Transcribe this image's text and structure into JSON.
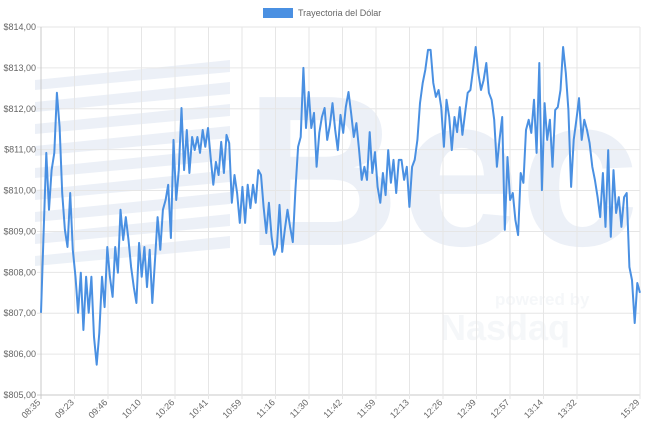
{
  "chart_data": {
    "type": "line",
    "title": "",
    "xlabel": "",
    "ylabel": "",
    "ylim": [
      805,
      814
    ],
    "grid": true,
    "legend": {
      "position": "top",
      "entries": [
        "Trayectoria del Dólar"
      ]
    },
    "y_ticks": [
      "$814,00",
      "$813,00",
      "$812,00",
      "$811,00",
      "$810,00",
      "$809,00",
      "$808,00",
      "$807,00",
      "$806,00",
      "$805,00"
    ],
    "x_ticks": [
      "08:35",
      "09:23",
      "09:46",
      "10:10",
      "10:26",
      "10:41",
      "10:59",
      "11:16",
      "11:30",
      "11:42",
      "11:59",
      "12:13",
      "12:26",
      "12:39",
      "12:57",
      "13:14",
      "13:32",
      "15:29"
    ],
    "series": [
      {
        "name": "Trayectoria del Dólar",
        "color": "#4a90e2",
        "values": [
          807.01,
          809.04,
          810.92,
          809.53,
          810.5,
          810.92,
          812.39,
          811.56,
          809.94,
          809.04,
          808.62,
          809.94,
          808.55,
          807.89,
          807.01,
          807.99,
          806.59,
          807.89,
          807.01,
          807.89,
          806.42,
          805.74,
          806.52,
          807.89,
          807.15,
          808.62,
          807.89,
          807.4,
          808.62,
          807.99,
          809.53,
          808.79,
          809.35,
          808.79,
          808.13,
          807.64,
          807.25,
          808.72,
          807.89,
          808.62,
          807.64,
          808.55,
          807.25,
          808.3,
          809.35,
          808.55,
          809.53,
          809.77,
          810.14,
          808.84,
          811.24,
          809.77,
          810.5,
          812.02,
          810.5,
          811.48,
          810.43,
          811.31,
          810.99,
          811.31,
          810.92,
          811.48,
          811.07,
          811.53,
          810.82,
          810.14,
          810.7,
          810.38,
          811.19,
          810.43,
          811.36,
          811.16,
          809.7,
          810.38,
          809.94,
          809.21,
          810.09,
          809.21,
          810.14,
          809.57,
          810.14,
          809.7,
          810.5,
          810.38,
          809.6,
          808.96,
          809.7,
          808.87,
          808.43,
          808.62,
          809.65,
          808.5,
          809.04,
          809.53,
          809.11,
          808.74,
          810.01,
          811.07,
          811.31,
          813.0,
          811.53,
          812.41,
          811.53,
          811.9,
          810.58,
          811.41,
          811.8,
          812.02,
          811.24,
          811.6,
          812.14,
          811.48,
          810.99,
          811.85,
          811.41,
          812.04,
          812.41,
          811.9,
          811.31,
          811.65,
          810.99,
          810.26,
          810.58,
          810.26,
          811.43,
          810.43,
          810.94,
          810.09,
          809.7,
          810.43,
          809.89,
          810.99,
          810.19,
          810.75,
          809.94,
          810.75,
          810.75,
          810.26,
          810.58,
          809.6,
          810.58,
          810.75,
          811.24,
          812.14,
          812.63,
          812.95,
          813.44,
          813.44,
          812.63,
          812.29,
          812.46,
          812.04,
          811.07,
          812.22,
          811.8,
          810.99,
          811.8,
          811.43,
          812.04,
          811.36,
          811.9,
          812.39,
          812.46,
          812.95,
          813.51,
          812.88,
          812.46,
          812.7,
          813.12,
          812.39,
          812.22,
          811.73,
          810.58,
          811.24,
          811.8,
          809.04,
          810.82,
          809.77,
          809.94,
          809.28,
          808.91,
          810.43,
          810.19,
          811.48,
          811.73,
          811.41,
          812.22,
          810.92,
          813.12,
          810.01,
          812.14,
          811.24,
          811.73,
          810.58,
          811.97,
          812.04,
          812.46,
          813.51,
          812.88,
          811.97,
          810.09,
          811.24,
          811.73,
          812.26,
          811.24,
          811.73,
          811.48,
          811.16,
          810.58,
          810.26,
          809.84,
          809.35,
          810.43,
          809.11,
          810.99,
          808.87,
          810.5,
          809.45,
          809.84,
          809.11,
          809.84,
          809.94,
          808.13,
          807.81,
          806.76,
          807.74,
          807.5
        ]
      }
    ]
  },
  "watermark": {
    "logo_text": "Bec",
    "powered": "powered by",
    "brand": "Nasdaq"
  }
}
